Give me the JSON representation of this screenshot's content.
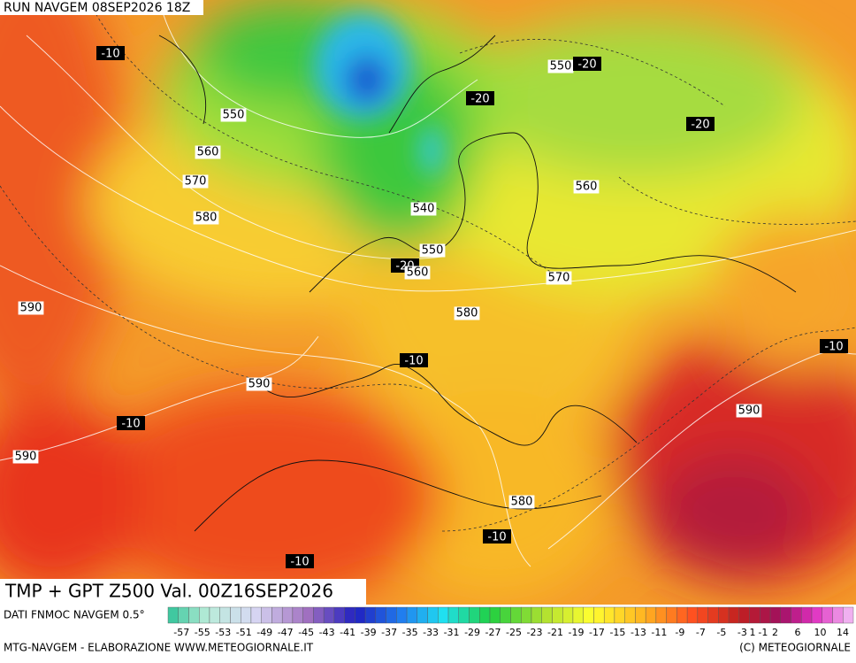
{
  "header": {
    "run": "RUN NAVGEM 08SEP2026 18Z"
  },
  "map": {
    "labels": [
      "-10",
      "550",
      "560",
      "570",
      "580",
      "590",
      "590",
      "-10",
      "590",
      "540",
      "550",
      "-20",
      "560",
      "570",
      "580",
      "-10",
      "-20",
      "550",
      "-20",
      "-20",
      "560",
      "-10",
      "590",
      "580",
      "-10",
      "-10"
    ]
  },
  "caption": "TMP + GPT Z500 Val. 00Z16SEP2026",
  "colorbar": {
    "source": "DATI FNMOC NAVGEM 0.5°",
    "labels": [
      "-57",
      "-55",
      "-53",
      "-51",
      "-49",
      "-47",
      "-45",
      "-43",
      "-41",
      "-39",
      "-37",
      "-35",
      "-33",
      "-31",
      "-29",
      "-27",
      "-25",
      "-23",
      "-21",
      "-19",
      "-17",
      "-15",
      "-13",
      "-11",
      "-9",
      "-7",
      "-5",
      "-3",
      "-1",
      "1",
      "2",
      "6",
      "10",
      "14"
    ]
  },
  "footer": {
    "left": "MTG-NAVGEM - ELABORAZIONE WWW.METEOGIORNALE.IT",
    "right": "(C) METEOGIORNALE"
  }
}
